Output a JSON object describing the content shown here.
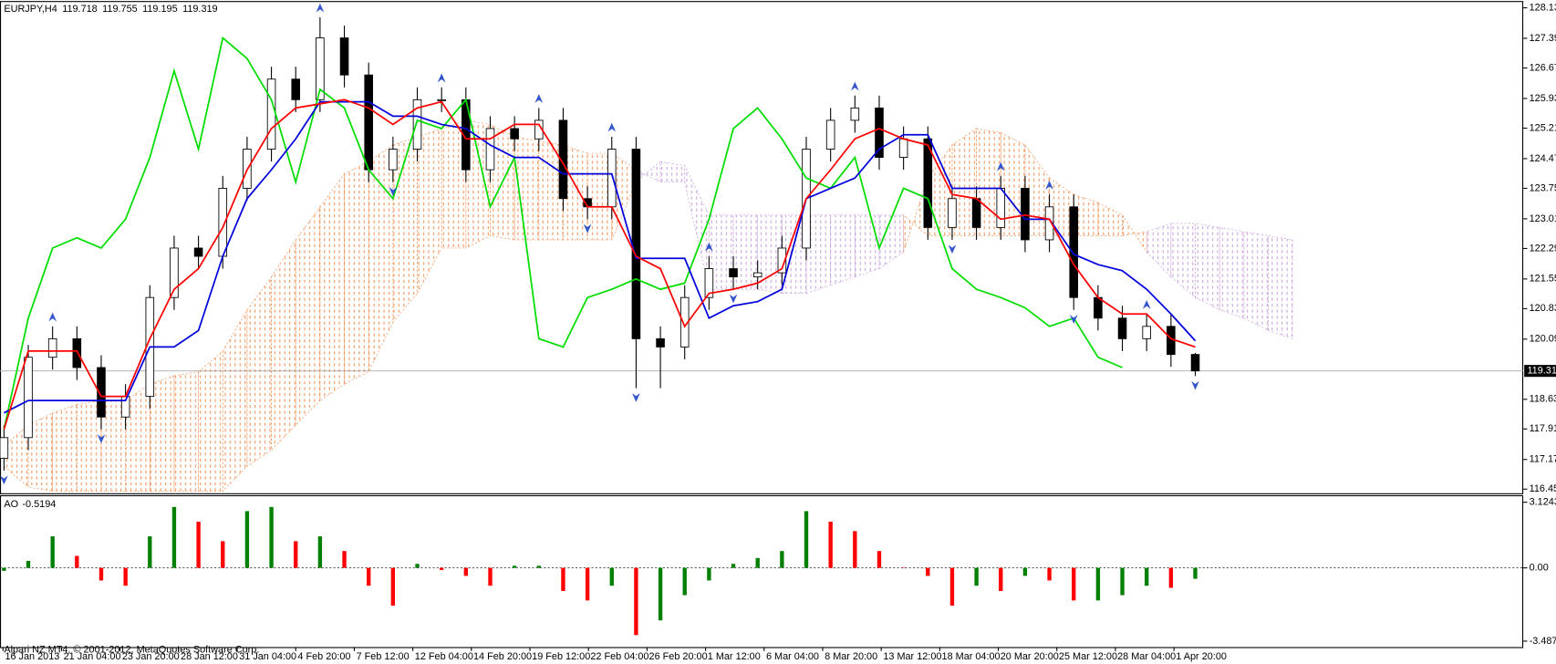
{
  "chart_data": {
    "type": "candlestick",
    "title": "EURJPY,H4",
    "ohlc": [
      119.718,
      119.755,
      119.195,
      119.319
    ],
    "footer": "Alpari NZ MT4, © 2001-2012, MetaQuotes Software Corp.",
    "x_labels": [
      "16 Jan 2013",
      "21 Jan 04:00",
      "23 Jan 20:00",
      "28 Jan 12:00",
      "31 Jan 04:00",
      "4 Feb 20:00",
      "7 Feb 12:00",
      "12 Feb 04:00",
      "14 Feb 20:00",
      "19 Feb 12:00",
      "22 Feb 04:00",
      "26 Feb 20:00",
      "1 Mar 12:00",
      "6 Mar 04:00",
      "8 Mar 20:00",
      "13 Mar 12:00",
      "18 Mar 04:00",
      "20 Mar 20:00",
      "25 Mar 12:00",
      "28 Mar 04:00",
      "1 Apr 20:00"
    ],
    "open": [
      117.2,
      117.7,
      119.65,
      120.1,
      119.4,
      118.2,
      118.7,
      121.1,
      122.3,
      122.1,
      123.75,
      124.7,
      126.4,
      125.9,
      127.4,
      126.5,
      124.2,
      124.7,
      125.9,
      125.9,
      124.2,
      125.2,
      124.95,
      125.4,
      123.5,
      123.3,
      124.7,
      120.1,
      119.9,
      121.1,
      121.8,
      121.6,
      121.7,
      122.3,
      124.7,
      125.4,
      125.7,
      124.5,
      124.95,
      122.8,
      123.5,
      122.8,
      123.75,
      122.5,
      123.3,
      121.1,
      120.6,
      120.1,
      120.4,
      119.718
    ],
    "high": [
      118.0,
      119.95,
      120.4,
      120.4,
      119.7,
      119.0,
      121.4,
      122.6,
      122.6,
      124.05,
      125.0,
      126.7,
      126.7,
      127.9,
      127.7,
      126.8,
      125.0,
      126.2,
      126.2,
      126.2,
      125.5,
      125.5,
      125.7,
      125.7,
      123.8,
      125.0,
      125.0,
      120.4,
      121.4,
      122.1,
      122.1,
      122.0,
      122.6,
      125.0,
      125.7,
      126.0,
      126.0,
      125.25,
      125.25,
      123.8,
      123.8,
      124.05,
      124.05,
      123.6,
      123.6,
      121.4,
      120.9,
      120.7,
      120.7,
      119.755
    ],
    "low": [
      116.9,
      117.4,
      119.35,
      119.1,
      117.9,
      117.9,
      118.4,
      120.8,
      121.8,
      121.8,
      123.45,
      124.4,
      125.6,
      125.6,
      126.2,
      123.9,
      123.9,
      124.4,
      125.6,
      123.9,
      123.9,
      124.65,
      124.65,
      123.2,
      123.0,
      123.0,
      118.9,
      118.9,
      119.6,
      120.8,
      121.3,
      121.3,
      121.4,
      122.0,
      124.4,
      125.1,
      124.2,
      124.2,
      122.5,
      122.5,
      122.5,
      122.5,
      122.2,
      122.2,
      120.8,
      120.3,
      119.8,
      119.8,
      119.418,
      119.195
    ],
    "close": [
      117.7,
      119.65,
      120.1,
      119.4,
      118.2,
      118.7,
      121.1,
      122.3,
      122.1,
      123.75,
      124.7,
      126.4,
      125.9,
      127.4,
      126.5,
      124.2,
      124.7,
      125.9,
      125.9,
      124.2,
      125.2,
      124.95,
      125.4,
      123.5,
      123.3,
      124.7,
      120.1,
      119.9,
      121.1,
      121.8,
      121.6,
      121.7,
      122.3,
      124.7,
      125.4,
      125.7,
      124.5,
      124.95,
      122.8,
      123.5,
      122.8,
      123.75,
      122.5,
      123.3,
      121.1,
      120.6,
      120.1,
      120.4,
      119.718,
      119.319
    ],
    "candle_up_color": "#ffffff",
    "candle_down_color": "#000000",
    "ylim": [
      116.35,
      128.27
    ],
    "yticks": [
      {
        "value": 116.45,
        "label": "116.450"
      },
      {
        "value": 117.17,
        "label": "117.170"
      },
      {
        "value": 117.91,
        "label": "117.910"
      },
      {
        "value": 118.63,
        "label": "118.630"
      },
      {
        "value": 120.09,
        "label": "120.090"
      },
      {
        "value": 120.83,
        "label": "120.830"
      },
      {
        "value": 121.55,
        "label": "121.550"
      },
      {
        "value": 122.29,
        "label": "122.290"
      },
      {
        "value": 123.01,
        "label": "123.010"
      },
      {
        "value": 123.75,
        "label": "123.750"
      },
      {
        "value": 124.47,
        "label": "124.470"
      },
      {
        "value": 125.21,
        "label": "125.210"
      },
      {
        "value": 125.93,
        "label": "125.930"
      },
      {
        "value": 126.67,
        "label": "126.670"
      },
      {
        "value": 127.39,
        "label": "127.390"
      },
      {
        "value": 128.13,
        "label": "128.130"
      }
    ],
    "lines": [
      {
        "color": "#00dd00",
        "values": [
          117.9,
          120.6,
          122.3,
          122.55,
          122.3,
          123.0,
          124.5,
          126.6,
          124.7,
          127.4,
          126.9,
          125.9,
          123.9,
          126.15,
          125.7,
          124.2,
          123.5,
          125.4,
          125.2,
          125.9,
          123.3,
          124.5,
          120.1,
          119.9,
          121.1,
          121.3,
          121.55,
          121.3,
          121.45,
          123.0,
          125.2,
          125.7,
          124.95,
          124.0,
          123.75,
          124.5,
          122.3,
          123.75,
          123.5,
          121.8,
          121.3,
          121.1,
          120.85,
          120.4,
          120.6,
          119.65,
          119.4,
          null,
          null,
          null
        ]
      },
      {
        "color": "#0000dd",
        "values": [
          118.3,
          118.6,
          118.6,
          118.6,
          118.6,
          118.6,
          119.9,
          119.9,
          120.3,
          122.1,
          123.5,
          124.2,
          124.95,
          125.85,
          125.85,
          125.85,
          125.5,
          125.5,
          125.3,
          125.2,
          124.8,
          124.5,
          124.5,
          124.1,
          124.1,
          124.1,
          122.05,
          122.05,
          122.05,
          120.6,
          120.9,
          121.0,
          121.3,
          123.5,
          123.75,
          124.0,
          124.7,
          125.05,
          125.05,
          123.75,
          123.75,
          123.75,
          123.0,
          123.0,
          122.15,
          121.9,
          121.75,
          121.3,
          120.7,
          120.05
        ]
      },
      {
        "color": "#ff0000",
        "values": [
          117.9,
          119.8,
          119.8,
          119.8,
          118.7,
          118.7,
          120.1,
          121.3,
          121.8,
          122.8,
          124.2,
          125.2,
          125.7,
          125.8,
          125.9,
          125.7,
          125.3,
          125.7,
          125.85,
          124.95,
          124.95,
          125.3,
          125.3,
          124.35,
          123.3,
          123.3,
          122.1,
          121.8,
          120.4,
          121.2,
          121.3,
          121.45,
          121.8,
          123.5,
          124.2,
          124.95,
          125.2,
          124.95,
          124.8,
          123.6,
          123.5,
          123.0,
          123.1,
          123.0,
          121.9,
          121.1,
          120.7,
          120.7,
          120.1,
          119.9
        ]
      }
    ],
    "cloud": {
      "span_a": [
        117.5,
        118.0,
        118.3,
        118.5,
        118.6,
        118.6,
        119.0,
        119.2,
        119.3,
        119.8,
        120.8,
        121.6,
        122.5,
        123.3,
        124.1,
        124.4,
        124.8,
        125.0,
        125.2,
        125.4,
        125.3,
        125.0,
        124.9,
        124.8,
        124.6,
        124.6,
        124.2,
        123.9,
        123.9,
        121.3,
        121.3,
        121.3,
        121.2,
        121.2,
        121.4,
        121.6,
        121.8,
        122.2,
        124.0,
        124.8,
        125.2,
        125.1,
        124.8,
        124.0,
        123.6,
        123.4,
        123.1,
        122.2,
        121.6,
        121.1,
        120.8,
        120.6,
        120.3,
        120.1
      ],
      "span_b": [
        117.0,
        116.5,
        116.4,
        116.4,
        116.4,
        116.4,
        116.4,
        116.4,
        116.4,
        116.4,
        117.0,
        117.4,
        118.0,
        118.6,
        119.0,
        119.3,
        120.5,
        121.2,
        122.3,
        122.3,
        122.6,
        122.5,
        122.5,
        122.5,
        122.5,
        122.5,
        123.9,
        124.4,
        124.3,
        123.1,
        123.1,
        123.1,
        123.1,
        123.1,
        123.1,
        123.1,
        123.1,
        123.1,
        122.6,
        122.6,
        122.6,
        122.6,
        122.6,
        122.6,
        122.6,
        122.6,
        122.6,
        122.7,
        122.9,
        122.9,
        122.8,
        122.7,
        122.6,
        122.5
      ],
      "bull_color": "#f0945a",
      "bear_color": "#c8a2dc"
    },
    "fractals": {
      "color": "#3355cc",
      "up": [
        null,
        null,
        120.4,
        null,
        null,
        null,
        null,
        null,
        null,
        null,
        null,
        null,
        null,
        127.9,
        null,
        null,
        null,
        null,
        126.2,
        null,
        null,
        null,
        125.7,
        null,
        null,
        125.0,
        null,
        null,
        null,
        122.1,
        null,
        null,
        null,
        null,
        null,
        126.0,
        null,
        null,
        null,
        null,
        null,
        124.05,
        null,
        123.6,
        null,
        null,
        null,
        120.7,
        null,
        null
      ],
      "down": [
        116.9,
        null,
        null,
        null,
        117.9,
        null,
        null,
        null,
        null,
        null,
        null,
        null,
        null,
        null,
        null,
        null,
        123.9,
        null,
        null,
        null,
        null,
        null,
        null,
        null,
        123.0,
        null,
        118.9,
        null,
        null,
        null,
        121.3,
        null,
        null,
        null,
        null,
        null,
        null,
        null,
        null,
        122.5,
        null,
        null,
        null,
        null,
        120.8,
        null,
        null,
        null,
        null,
        119.195
      ]
    },
    "ao": {
      "name": "AO",
      "values": [
        -0.14,
        0.33,
        1.5,
        0.57,
        -0.6,
        -0.85,
        1.5,
        2.9,
        2.2,
        1.27,
        2.7,
        2.9,
        1.27,
        1.5,
        0.8,
        -0.85,
        -1.8,
        0.19,
        -0.1,
        -0.38,
        -0.85,
        0.1,
        0.1,
        -1.1,
        -1.55,
        -0.85,
        -3.2,
        -2.5,
        -1.3,
        -0.6,
        0.19,
        0.47,
        0.8,
        2.7,
        2.2,
        1.75,
        0.8,
        0.02,
        -0.38,
        -1.8,
        -0.85,
        -1.1,
        -0.38,
        -0.6,
        -1.55,
        -1.55,
        -1.3,
        -0.85,
        -0.95,
        -0.5194
      ],
      "up_color": "#008000",
      "down_color": "#ff0000",
      "ylim": [
        -3.77,
        3.41
      ],
      "yticks": [
        -3.4875,
        {
          "value": 0,
          "label": "0.00"
        },
        3.1243
      ]
    }
  }
}
